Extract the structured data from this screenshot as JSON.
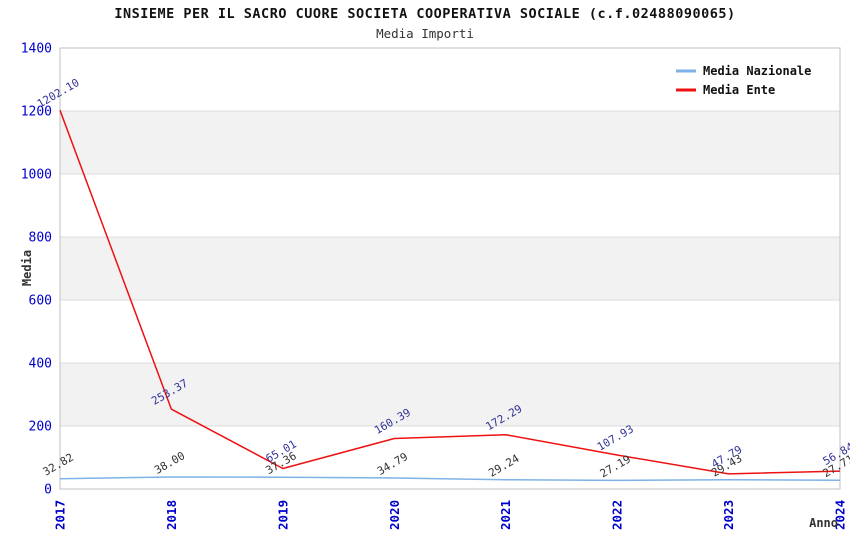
{
  "chart_data": {
    "type": "line",
    "title": "INSIEME PER IL SACRO CUORE SOCIETA COOPERATIVA SOCIALE (c.f.02488090065)",
    "subtitle": "Media Importi",
    "xlabel": "Anno",
    "ylabel": "Media",
    "categories": [
      "2017",
      "2018",
      "2019",
      "2020",
      "2021",
      "2022",
      "2023",
      "2024"
    ],
    "ylim": [
      0,
      1400
    ],
    "yticks": [
      0,
      200,
      400,
      600,
      800,
      1000,
      1200,
      1400
    ],
    "grid": "horizontal-bands-alternating",
    "legend_position": "top-right",
    "series": [
      {
        "name": "Media Nazionale",
        "color": "#7eb2e6",
        "label_color": "#333333",
        "values": [
          32.82,
          38.0,
          37.36,
          34.79,
          29.24,
          27.19,
          29.43,
          27.71
        ]
      },
      {
        "name": "Media Ente",
        "color": "#ee1111",
        "label_color": "#333399",
        "values": [
          1202.1,
          253.37,
          65.01,
          160.39,
          172.29,
          107.93,
          47.79,
          56.84
        ]
      }
    ],
    "colors": {
      "tick_label": "#0000cc",
      "axis_title": "#333333",
      "title": "#111111",
      "subtitle": "#333333",
      "band_fill": "#f2f2f2",
      "grid_line": "#dcdcdc",
      "plot_border": "#c0c0c0",
      "legend_text": "#111111"
    }
  }
}
